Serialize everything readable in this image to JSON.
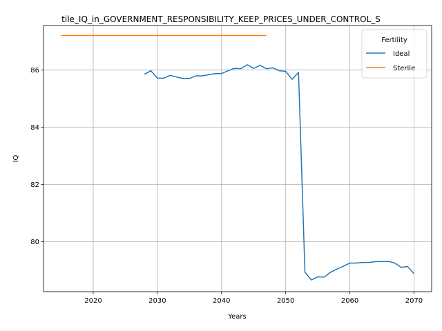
{
  "chart_data": {
    "type": "line",
    "title": "tile_IQ_in_GOVERNMENT_RESPONSIBILITY_KEEP_PRICES_UNDER_CONTROL_S",
    "xlabel": "Years",
    "ylabel": "IQ",
    "xlim": [
      2012.25,
      2072.75
    ],
    "ylim": [
      78.25,
      87.55
    ],
    "xticks": [
      2020,
      2030,
      2040,
      2050,
      2060,
      2070
    ],
    "yticks": [
      80,
      82,
      84,
      86
    ],
    "grid": true,
    "legend": {
      "title": "Fertility",
      "placement": "top-right"
    },
    "series": [
      {
        "name": "Ideal",
        "color": "#1f77b4",
        "x": [
          2028,
          2029,
          2030,
          2031,
          2032,
          2033,
          2034,
          2035,
          2036,
          2037,
          2038,
          2039,
          2040,
          2041,
          2042,
          2043,
          2044,
          2045,
          2046,
          2047,
          2048,
          2049,
          2050,
          2051,
          2052,
          2053,
          2054,
          2055,
          2056,
          2057,
          2058,
          2059,
          2060,
          2061,
          2062,
          2063,
          2064,
          2065,
          2066,
          2067,
          2068,
          2069,
          2070
        ],
        "y": [
          85.85,
          85.97,
          85.71,
          85.71,
          85.81,
          85.75,
          85.7,
          85.7,
          85.79,
          85.79,
          85.83,
          85.87,
          85.87,
          85.97,
          86.05,
          86.04,
          86.18,
          86.05,
          86.16,
          86.04,
          86.07,
          85.97,
          85.95,
          85.67,
          85.91,
          78.93,
          78.66,
          78.77,
          78.76,
          78.93,
          79.04,
          79.14,
          79.25,
          79.25,
          79.27,
          79.27,
          79.3,
          79.3,
          79.31,
          79.25,
          79.1,
          79.13,
          78.88
        ]
      },
      {
        "name": "Sterile",
        "color": "#ff7f0e",
        "x": [
          2015,
          2047
        ],
        "y": [
          87.2,
          87.2
        ]
      }
    ]
  }
}
